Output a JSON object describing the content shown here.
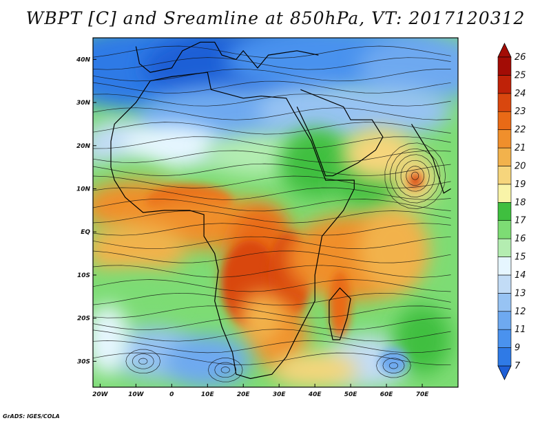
{
  "title": "WBPT [C] and Sreamline at 850hPa, VT: 2017120312",
  "footer": "GrADS: IGES/COLA",
  "map": {
    "lon_range": [
      -22,
      80
    ],
    "lat_range": [
      -36,
      45
    ],
    "lon_ticks": [
      {
        "value": -20,
        "label": "20W"
      },
      {
        "value": -10,
        "label": "10W"
      },
      {
        "value": 0,
        "label": "0"
      },
      {
        "value": 10,
        "label": "10E"
      },
      {
        "value": 20,
        "label": "20E"
      },
      {
        "value": 30,
        "label": "30E"
      },
      {
        "value": 40,
        "label": "40E"
      },
      {
        "value": 50,
        "label": "50E"
      },
      {
        "value": 60,
        "label": "60E"
      },
      {
        "value": 70,
        "label": "70E"
      }
    ],
    "lat_ticks": [
      {
        "value": 40,
        "label": "40N"
      },
      {
        "value": 30,
        "label": "30N"
      },
      {
        "value": 20,
        "label": "20N"
      },
      {
        "value": 10,
        "label": "10N"
      },
      {
        "value": 0,
        "label": "EQ"
      },
      {
        "value": -10,
        "label": "10S"
      },
      {
        "value": -20,
        "label": "20S"
      },
      {
        "value": -30,
        "label": "30S"
      }
    ]
  },
  "colorbar": {
    "levels": [
      "7",
      "9",
      "11",
      "12",
      "13",
      "14",
      "15",
      "16",
      "17",
      "18",
      "19",
      "20",
      "21",
      "22",
      "23",
      "24",
      "25",
      "26"
    ],
    "colors": [
      "#1e5fd6",
      "#2f7ae6",
      "#4a92ee",
      "#6ea9f0",
      "#97c3f3",
      "#c2dcf6",
      "#e6f6ff",
      "#b4edb1",
      "#7ddc74",
      "#3fbf3f",
      "#f9f4a8",
      "#f6d57c",
      "#f2b24c",
      "#f08f2c",
      "#e96a16",
      "#d9470e",
      "#bf2208",
      "#a30c05"
    ]
  },
  "chart_data": {
    "type": "heatmap",
    "title": "WBPT [C] and Sreamline at 850hPa, VT: 2017120312",
    "variable": "WBPT [C]",
    "overlay": "Streamline",
    "level": "850hPa",
    "valid_time": "2017120312",
    "lon_range": [
      -22,
      80
    ],
    "lat_range": [
      -36,
      45
    ],
    "colorbar_levels": [
      7,
      9,
      11,
      12,
      13,
      14,
      15,
      16,
      17,
      18,
      19,
      20,
      21,
      22,
      23,
      24,
      25,
      26
    ]
  }
}
